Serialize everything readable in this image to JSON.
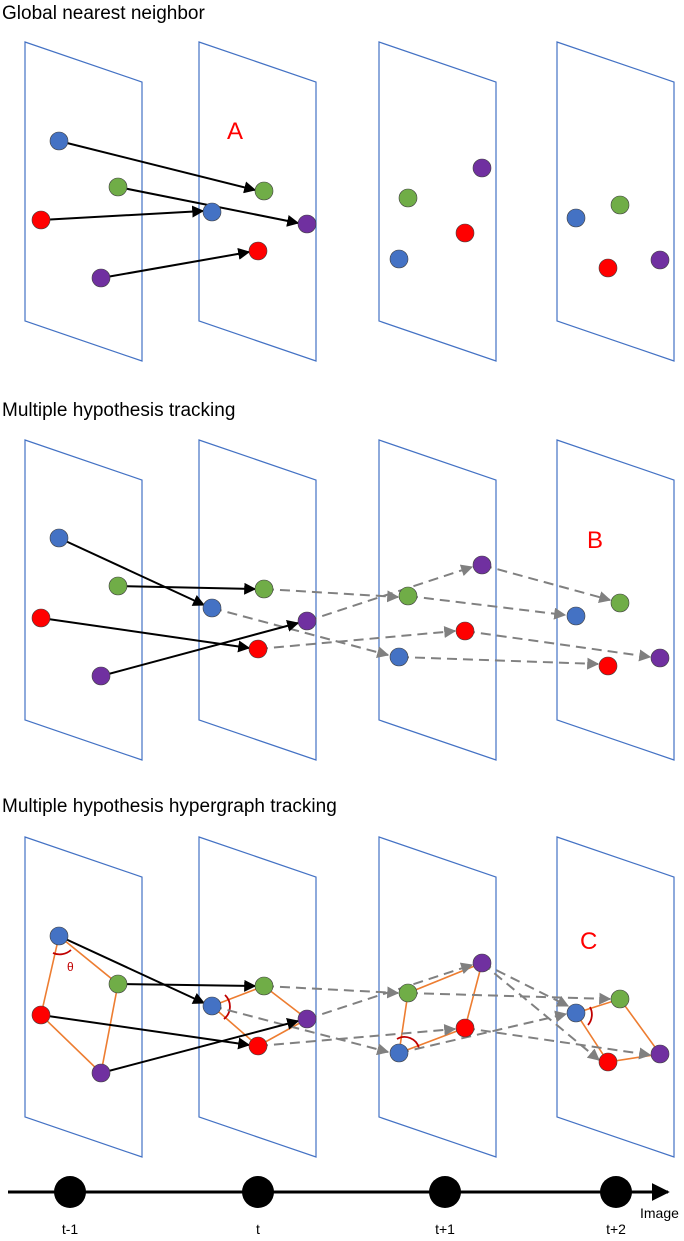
{
  "titles": {
    "global_nn": "Global nearest neighbor",
    "mht": "Multiple hypothesis tracking",
    "mhht": "Multiple hypothesis hypergraph tracking"
  },
  "panel_labels": {
    "a": "A",
    "b": "B",
    "c": "C"
  },
  "angle_label": "θ",
  "timeline": {
    "ticks": [
      "t-1",
      "t",
      "t+1",
      "t+2"
    ],
    "axis_label": "Image"
  },
  "colors": {
    "blue": "#4472c4",
    "green": "#70ad47",
    "red": "#ff0000",
    "purple": "#7030a0",
    "frame": "#4472c4",
    "hyperedge": "#ed7d31",
    "hypothesis_arrow": "#808080",
    "assignment_arrow": "#000000",
    "angle_marker": "#c00000"
  }
}
